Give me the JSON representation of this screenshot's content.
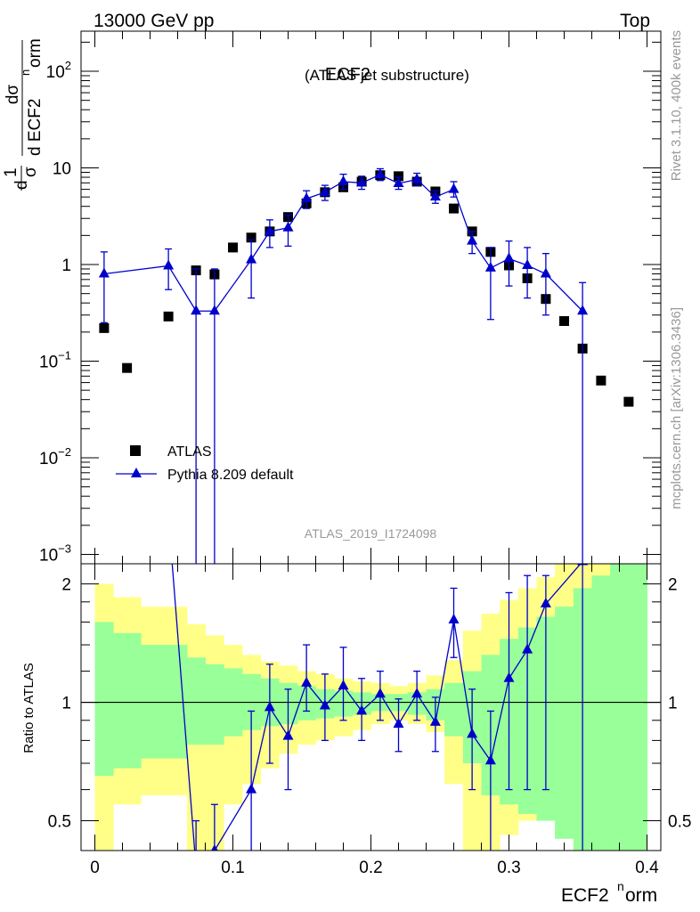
{
  "header": {
    "left": "13000 GeV pp",
    "right": "Top"
  },
  "side_text": {
    "rivet": "Rivet 3.1.10,  400k events",
    "mcplots": "mcplots.cern.ch [arXiv:1306.3436]"
  },
  "colors": {
    "mc": "#0000cc",
    "data": "#000000",
    "band_outer": "#ffff88",
    "band_inner": "#99ff99",
    "watermark": "#999999"
  },
  "chart_data": [
    {
      "type": "scatter",
      "title": "ECF2",
      "subtitle": "(ATLAS jet substructure)",
      "analysis_label": "ATLAS_2019_I1724098",
      "ylabel_parts": {
        "d": "d",
        "sigma": "σ",
        "one": "1",
        "num": "dσ",
        "den": "d ECF2",
        "den_sup": "n",
        "den_tail": "orm"
      },
      "y_scale": "log",
      "xlim": [
        -0.01,
        0.41
      ],
      "ylim": [
        0.0008,
        260
      ],
      "x_ticks": [
        0,
        0.1,
        0.2,
        0.3,
        0.4
      ],
      "y_tick_labels": [
        {
          "base": "10",
          "exp": "2",
          "value": 100
        },
        {
          "base": "10",
          "exp": "",
          "value": 10
        },
        {
          "base": "1",
          "exp": "",
          "value": 1
        },
        {
          "base": "10",
          "exp": "−1",
          "value": 0.1
        },
        {
          "base": "10",
          "exp": "−2",
          "value": 0.01
        },
        {
          "base": "10",
          "exp": "−3",
          "value": 0.001
        }
      ],
      "legend": {
        "placement": "lower-left",
        "entries": [
          "ATLAS",
          "Pythia 8.209 default"
        ]
      },
      "series": [
        {
          "name": "ATLAS",
          "marker": "square",
          "x": [
            0.0067,
            0.0233,
            0.0533,
            0.0733,
            0.0867,
            0.1,
            0.1133,
            0.1267,
            0.14,
            0.1533,
            0.1667,
            0.18,
            0.1933,
            0.2067,
            0.22,
            0.2333,
            0.2467,
            0.26,
            0.2733,
            0.2867,
            0.3,
            0.3133,
            0.3267,
            0.34,
            0.3533,
            0.3667,
            0.3867
          ],
          "y": [
            0.22,
            0.085,
            0.29,
            0.87,
            0.79,
            1.5,
            1.9,
            2.2,
            3.1,
            4.3,
            5.6,
            6.3,
            7.2,
            8.4,
            8.2,
            7.2,
            5.7,
            3.8,
            2.2,
            1.35,
            0.98,
            0.72,
            0.44,
            0.26,
            0.135,
            0.063,
            0.038
          ]
        },
        {
          "name": "Pythia 8.209 default",
          "marker": "triangle",
          "x": [
            0.0067,
            0.0533,
            0.0733,
            0.0867,
            0.1133,
            0.1267,
            0.14,
            0.1533,
            0.1667,
            0.18,
            0.1933,
            0.2067,
            0.22,
            0.2333,
            0.2467,
            0.26,
            0.2733,
            0.2867,
            0.3,
            0.3133,
            0.3267,
            0.3533
          ],
          "y": [
            0.8,
            0.97,
            0.33,
            0.33,
            1.12,
            2.2,
            2.4,
            4.8,
            5.6,
            7.2,
            7.0,
            8.5,
            6.9,
            7.6,
            5.0,
            6.0,
            1.75,
            0.92,
            1.15,
            0.98,
            0.8,
            0.33
          ],
          "y_low": [
            0.25,
            0.55,
            0.0008,
            0.0008,
            0.45,
            1.5,
            1.55,
            3.8,
            4.6,
            6.0,
            6.0,
            7.4,
            6.0,
            6.5,
            4.3,
            5.0,
            1.3,
            0.27,
            0.6,
            0.45,
            0.3,
            0.0008
          ],
          "y_high": [
            1.35,
            1.45,
            0.9,
            0.9,
            1.8,
            2.9,
            3.25,
            5.8,
            6.6,
            8.6,
            8.2,
            9.8,
            8.0,
            8.8,
            5.8,
            7.2,
            2.2,
            1.5,
            1.75,
            1.5,
            1.3,
            0.65
          ]
        }
      ]
    },
    {
      "type": "line",
      "ylabel": "Ratio to ATLAS",
      "xlabel": "ECF2",
      "xlabel_sup": "n",
      "xlabel_tail": "orm",
      "xlim": [
        -0.01,
        0.41
      ],
      "ylim": [
        0.42,
        2.25
      ],
      "y_scale": "log",
      "x_tick_labels": [
        "0",
        "0.1",
        "0.2",
        "0.3",
        "0.4"
      ],
      "y_tick_labels": [
        "2",
        "1",
        "0.5"
      ],
      "band_edges": [
        0,
        0.0133,
        0.0333,
        0.0667,
        0.08,
        0.0933,
        0.1067,
        0.12,
        0.1333,
        0.1467,
        0.16,
        0.1733,
        0.1867,
        0.2,
        0.2133,
        0.2267,
        0.24,
        0.2533,
        0.2667,
        0.28,
        0.2933,
        0.3067,
        0.32,
        0.3333,
        0.3467,
        0.36,
        0.3733,
        0.4
      ],
      "band_outer_low": [
        0.42,
        0.55,
        0.58,
        0.42,
        0.42,
        0.55,
        0.62,
        0.68,
        0.74,
        0.78,
        0.8,
        0.82,
        0.85,
        0.88,
        0.9,
        0.88,
        0.84,
        0.62,
        0.42,
        0.42,
        0.46,
        0.5,
        0.52,
        0.52,
        0.42,
        0.42,
        0.42
      ],
      "band_outer_high": [
        2.0,
        1.85,
        1.75,
        1.58,
        1.48,
        1.4,
        1.32,
        1.27,
        1.24,
        1.2,
        1.18,
        1.15,
        1.13,
        1.12,
        1.1,
        1.12,
        1.17,
        1.28,
        1.52,
        1.68,
        1.82,
        1.95,
        2.08,
        2.25,
        2.25,
        2.25,
        2.25
      ],
      "band_inner_low": [
        0.65,
        0.68,
        0.72,
        0.78,
        0.78,
        0.82,
        0.85,
        0.87,
        0.88,
        0.9,
        0.91,
        0.92,
        0.93,
        0.95,
        0.95,
        0.93,
        0.9,
        0.82,
        0.7,
        0.58,
        0.55,
        0.52,
        0.5,
        0.45,
        0.42,
        0.42,
        0.42
      ],
      "band_inner_high": [
        1.6,
        1.5,
        1.4,
        1.3,
        1.25,
        1.22,
        1.18,
        1.15,
        1.12,
        1.1,
        1.08,
        1.07,
        1.06,
        1.05,
        1.05,
        1.06,
        1.08,
        1.12,
        1.2,
        1.32,
        1.45,
        1.55,
        1.65,
        1.75,
        1.95,
        2.1,
        2.25
      ],
      "reference_line": 1,
      "ratio_series": {
        "name": "Pythia 8.209 default",
        "x": [
          0.0733,
          0.0867,
          0.1133,
          0.1267,
          0.14,
          0.1533,
          0.1667,
          0.18,
          0.1933,
          0.2067,
          0.22,
          0.2333,
          0.2467,
          0.26,
          0.2733,
          0.2867,
          0.3,
          0.3133,
          0.3267,
          0.3533
        ],
        "y": [
          0.38,
          0.42,
          0.6,
          0.97,
          0.82,
          1.12,
          0.98,
          1.1,
          0.95,
          1.05,
          0.88,
          1.05,
          0.89,
          1.62,
          0.83,
          0.71,
          1.15,
          1.36,
          1.78,
          2.28
        ],
        "y_low": [
          0.3,
          0.3,
          0.35,
          0.7,
          0.6,
          0.95,
          0.8,
          0.9,
          0.8,
          0.9,
          0.75,
          0.9,
          0.75,
          1.3,
          0.6,
          0.4,
          0.6,
          0.6,
          0.6,
          0.3
        ],
        "y_high": [
          0.5,
          0.55,
          0.95,
          1.25,
          1.08,
          1.4,
          1.18,
          1.38,
          1.15,
          1.2,
          1.02,
          1.2,
          1.03,
          1.95,
          1.08,
          0.95,
          1.9,
          2.1,
          2.1,
          2.3
        ],
        "lead_in_from": {
          "x": 0.055,
          "y": 2.5
        }
      }
    }
  ]
}
